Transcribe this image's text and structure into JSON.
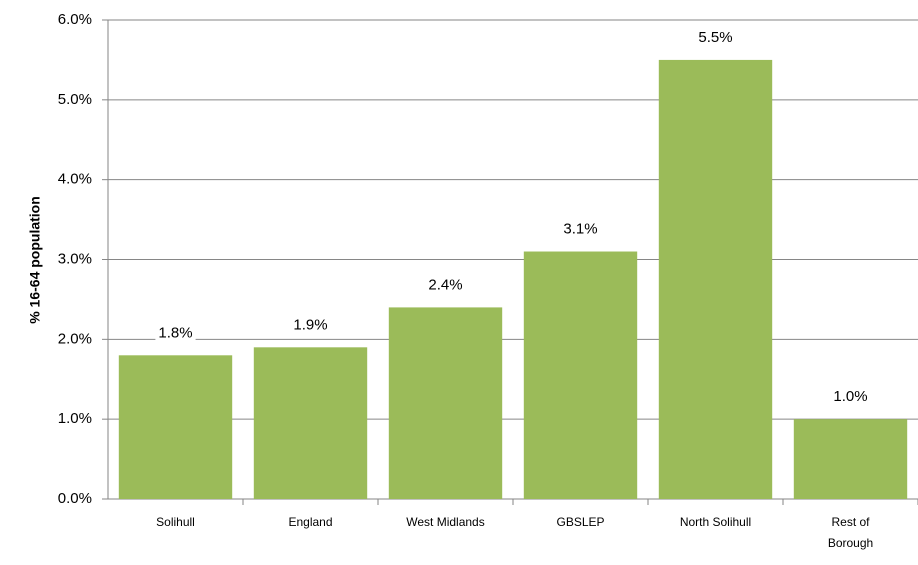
{
  "chart_data": {
    "type": "bar",
    "y_label": "% 16-64 population",
    "categories": [
      "Solihull",
      "England",
      "West Midlands",
      "GBSLEP",
      "North Solihull",
      "Rest of Borough"
    ],
    "values": [
      1.8,
      1.9,
      2.4,
      3.1,
      5.5,
      1.0
    ],
    "value_labels": [
      "1.8%",
      "1.9%",
      "2.4%",
      "3.1%",
      "5.5%",
      "1.0%"
    ],
    "color": "#9bbb59",
    "ylim": [
      0,
      6
    ],
    "yticks": [
      {
        "value": 0,
        "label": "0.0%"
      },
      {
        "value": 1,
        "label": "1.0%"
      },
      {
        "value": 2,
        "label": "2.0%"
      },
      {
        "value": 3,
        "label": "3.0%"
      },
      {
        "value": 4,
        "label": "4.0%"
      },
      {
        "value": 5,
        "label": "5.0%"
      },
      {
        "value": 6,
        "label": "6.0%"
      }
    ],
    "grid": true
  }
}
